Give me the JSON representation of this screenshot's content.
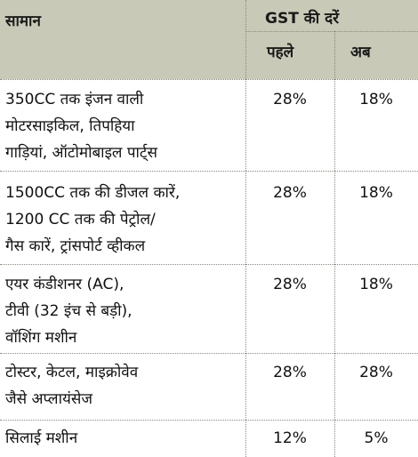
{
  "header": {
    "item": "सामान",
    "gst_rates": "GST की दरें",
    "before": "पहले",
    "now": "अब"
  },
  "rows": [
    {
      "item": "350CC तक इंजन वाली\nमोटरसाइकिल, तिपहिया\nगाड़ियां, ऑटोमोबाइल पार्ट्स",
      "before": "28%",
      "now": "18%"
    },
    {
      "item": "1500CC तक की डीजल कारें,\n1200 CC तक की पेट्रोल/\nगैस कारें, ट्रांसपोर्ट व्हीकल",
      "before": "28%",
      "now": "18%"
    },
    {
      "item": "एयर कंडीशनर (AC),\nटीवी (32 इंच से बड़ी),\nवॉशिंग मशीन",
      "before": "28%",
      "now": "18%"
    },
    {
      "item": "टोस्टर, केटल, माइक्रोवेव\nजैसे अप्लायंसेज",
      "before": "28%",
      "now": "28%"
    },
    {
      "item": "सिलाई मशीन",
      "before": "12%",
      "now": "5%"
    }
  ],
  "colors": {
    "header_bg": "#c9c9b7",
    "text": "#111111",
    "rule": "#8a8a80"
  }
}
